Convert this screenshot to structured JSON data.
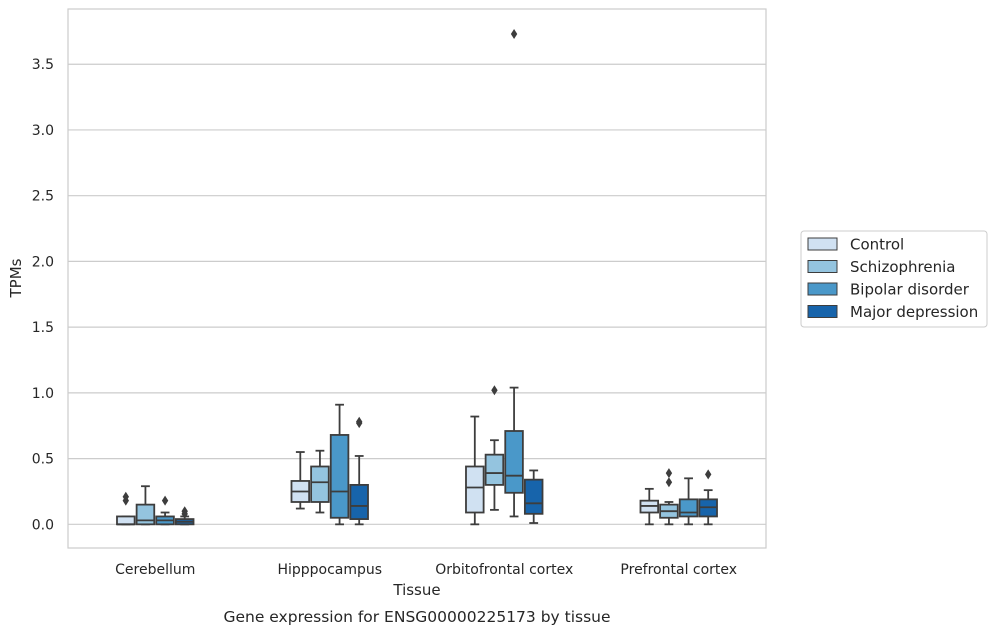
{
  "chart_data": {
    "type": "box",
    "xlabel": "Tissue",
    "ylabel": "TPMs",
    "caption": "Gene expression for ENSG00000225173 by tissue",
    "categories": [
      "Cerebellum",
      "Hipppocampus",
      "Orbitofrontal cortex",
      "Prefrontal cortex"
    ],
    "ylim": [
      -0.18,
      3.92
    ],
    "yticks": [
      0.0,
      0.5,
      1.0,
      1.5,
      2.0,
      2.5,
      3.0,
      3.5
    ],
    "ytick_labels": [
      "0.0",
      "0.5",
      "1.0",
      "1.5",
      "2.0",
      "2.5",
      "3.0",
      "3.5"
    ],
    "grid": "horizontal",
    "legend_position": "right",
    "series": [
      {
        "name": "Control",
        "color": "#d0e1f2",
        "boxes": [
          {
            "whislo": 0.0,
            "q1": 0.0,
            "med": 0.0,
            "q3": 0.06,
            "whishi": 0.06,
            "fliers": [
              0.18,
              0.21
            ]
          },
          {
            "whislo": 0.12,
            "q1": 0.17,
            "med": 0.25,
            "q3": 0.33,
            "whishi": 0.55,
            "fliers": []
          },
          {
            "whislo": 0.0,
            "q1": 0.09,
            "med": 0.28,
            "q3": 0.44,
            "whishi": 0.82,
            "fliers": []
          },
          {
            "whislo": 0.0,
            "q1": 0.09,
            "med": 0.14,
            "q3": 0.18,
            "whishi": 0.27,
            "fliers": []
          }
        ]
      },
      {
        "name": "Schizophrenia",
        "color": "#94c4df",
        "boxes": [
          {
            "whislo": 0.0,
            "q1": 0.0,
            "med": 0.03,
            "q3": 0.15,
            "whishi": 0.29,
            "fliers": []
          },
          {
            "whislo": 0.09,
            "q1": 0.17,
            "med": 0.32,
            "q3": 0.44,
            "whishi": 0.56,
            "fliers": []
          },
          {
            "whislo": 0.11,
            "q1": 0.3,
            "med": 0.39,
            "q3": 0.53,
            "whishi": 0.64,
            "fliers": [
              1.02
            ]
          },
          {
            "whislo": 0.0,
            "q1": 0.05,
            "med": 0.1,
            "q3": 0.15,
            "whishi": 0.17,
            "fliers": [
              0.32,
              0.39
            ]
          }
        ]
      },
      {
        "name": "Bipolar disorder",
        "color": "#4a98c9",
        "boxes": [
          {
            "whislo": 0.0,
            "q1": 0.0,
            "med": 0.03,
            "q3": 0.06,
            "whishi": 0.09,
            "fliers": [
              0.18
            ]
          },
          {
            "whislo": 0.0,
            "q1": 0.05,
            "med": 0.25,
            "q3": 0.68,
            "whishi": 0.91,
            "fliers": []
          },
          {
            "whislo": 0.06,
            "q1": 0.24,
            "med": 0.37,
            "q3": 0.71,
            "whishi": 1.04,
            "fliers": [
              3.73
            ]
          },
          {
            "whislo": 0.0,
            "q1": 0.06,
            "med": 0.09,
            "q3": 0.19,
            "whishi": 0.35,
            "fliers": []
          }
        ]
      },
      {
        "name": "Major depression",
        "color": "#1764ab",
        "boxes": [
          {
            "whislo": 0.0,
            "q1": 0.0,
            "med": 0.02,
            "q3": 0.04,
            "whishi": 0.06,
            "fliers": [
              0.08,
              0.1
            ]
          },
          {
            "whislo": 0.0,
            "q1": 0.04,
            "med": 0.14,
            "q3": 0.3,
            "whishi": 0.52,
            "fliers": [
              0.77,
              0.78
            ]
          },
          {
            "whislo": 0.01,
            "q1": 0.08,
            "med": 0.16,
            "q3": 0.34,
            "whishi": 0.41,
            "fliers": []
          },
          {
            "whislo": 0.0,
            "q1": 0.06,
            "med": 0.13,
            "q3": 0.19,
            "whishi": 0.26,
            "fliers": [
              0.38
            ]
          }
        ]
      }
    ]
  }
}
